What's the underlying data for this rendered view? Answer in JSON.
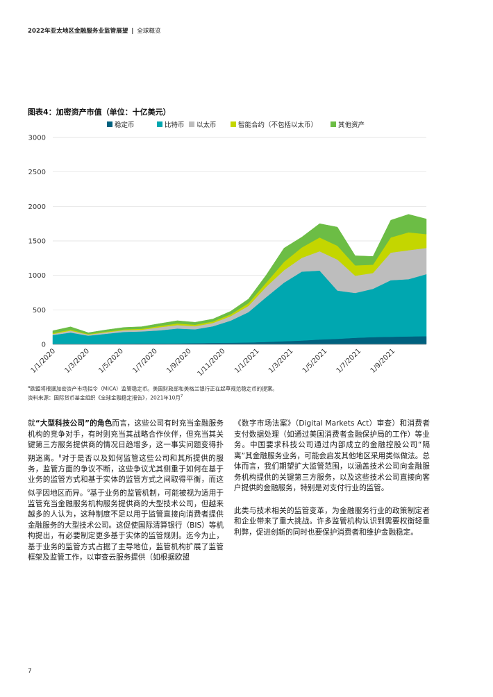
{
  "header": {
    "title": "2022年亚太地区金融服务业监管展望",
    "separator": "|",
    "section": "全球概览"
  },
  "figure": {
    "title": "图表4：加密资产市值（单位：十亿美元）"
  },
  "chart_data": {
    "type": "area",
    "stacked": true,
    "legend_position": "top",
    "grid": true,
    "ylim": [
      0,
      3000
    ],
    "yticks": [
      0,
      500,
      1000,
      1500,
      2000,
      2500,
      3000
    ],
    "yticks_labels": [
      "0",
      "500",
      "1000",
      "1500",
      "2000",
      "2500",
      "3000"
    ],
    "xticks_labels": [
      "1/1/2020",
      "1/3/2020",
      "1/5/2020",
      "1/7/2020",
      "1/9/2020",
      "1/11/2020",
      "1/1/2021",
      "1/3/2021",
      "1/5/2021",
      "1/7/2021",
      "1/9/2021"
    ],
    "x": [
      "2020-01",
      "2020-02",
      "2020-03",
      "2020-04",
      "2020-05",
      "2020-06",
      "2020-07",
      "2020-08",
      "2020-09",
      "2020-10",
      "2020-11",
      "2020-12",
      "2021-01",
      "2021-02",
      "2021-03",
      "2021-04",
      "2021-05",
      "2021-06",
      "2021-07",
      "2021-08",
      "2021-09",
      "2021-10"
    ],
    "series": [
      {
        "name": "稳定币",
        "color": "#00617f",
        "values": [
          5,
          6,
          6,
          8,
          10,
          12,
          13,
          14,
          18,
          22,
          24,
          27,
          35,
          45,
          55,
          70,
          80,
          95,
          105,
          110,
          115,
          118
        ]
      },
      {
        "name": "比特币",
        "color": "#00a7b0",
        "values": [
          130,
          165,
          120,
          145,
          170,
          175,
          190,
          215,
          200,
          240,
          320,
          440,
          650,
          850,
          1000,
          1000,
          700,
          650,
          700,
          820,
          830,
          900
        ]
      },
      {
        "name": "以太币",
        "color": "#bdbdbd",
        "values": [
          15,
          28,
          15,
          22,
          25,
          25,
          45,
          50,
          45,
          48,
          65,
          90,
          150,
          180,
          200,
          280,
          450,
          250,
          230,
          400,
          420,
          380
        ]
      },
      {
        "name": "智能合约（不包括以太币）",
        "color": "#c4d600",
        "values": [
          12,
          15,
          8,
          10,
          12,
          14,
          18,
          24,
          22,
          22,
          26,
          40,
          60,
          120,
          150,
          200,
          200,
          150,
          120,
          220,
          260,
          200
        ]
      },
      {
        "name": "其他资产",
        "color": "#6cbd45",
        "values": [
          35,
          40,
          20,
          25,
          28,
          30,
          35,
          40,
          35,
          35,
          45,
          60,
          110,
          200,
          150,
          200,
          270,
          140,
          120,
          250,
          260,
          220
        ]
      }
    ]
  },
  "notes": {
    "line1_sup": "a",
    "line1": "欧盟将根据加密资产市场指令（MiCA）监管稳定币。美国财政部和美格兰银行正在起草规范稳定币的提案。",
    "line2": "资料来源：国际货币基金组织《全球金融稳定报告》，2021年10月",
    "line2_sup": "7"
  },
  "body": {
    "left": {
      "p1_a": "就",
      "p1_strong": "“大型科技公司”的角色",
      "p1_b": "而言，这些公司有时充当金融服务机构的竞争对手，有时则充当其战略合作伙伴，但充当其关键第三方服务提供商的情况日趋增多，这一事实问题变得扑朔迷离。",
      "sup1": "8",
      "p1_c": "对于是否以及如何监管这些公司和其所提供的服务，监管方面的争议不断，这些争议尤其侧重于如何在基于业务的监管方式和基于实体的监管方式之间取得平衡，而这似乎因地区而异。",
      "sup2": "9",
      "p1_d": "基于业务的监管机制，可能被视为适用于监管充当金融服务机构服务提供商的大型技术公司，但越来越多的人认为，这种制度不足以用于监管直接向消费者提供金融服务的大型技术公司。这促使国际清算银行（BIS）等机构提出，有必要制定更多基于实体的监管规则。迄今为止，基于业务的监管方式占据了主导地位，监管机构扩展了监管框架及监管工作，以审查云服务提供（如根据欧盟"
    },
    "right": {
      "p1": "《数字市场法案》（Digital Markets Act）审查）和消费者支付数据处理（如通过美国消费者金融保护局的工作）等业务。中国要求科技公司通过内部成立的金融控股公司“隔离”其金融服务业务，可能会启发其他地区采用类似做法。总体而言，我们期望扩大监管范围，以涵盖技术公司向金融服务机构提供的关键第三方服务，以及这些技术公司直接向客户提供的金融服务，特别是对支付行业的监管。",
      "p2": "此类与技术相关的监管变革，为金融服务行业的政策制定者和企业带来了重大挑战。许多监管机构认识到需要权衡轻重利弊，促进创新的同时也要保护消费者和维护金融稳定。"
    }
  },
  "page_number": "7"
}
